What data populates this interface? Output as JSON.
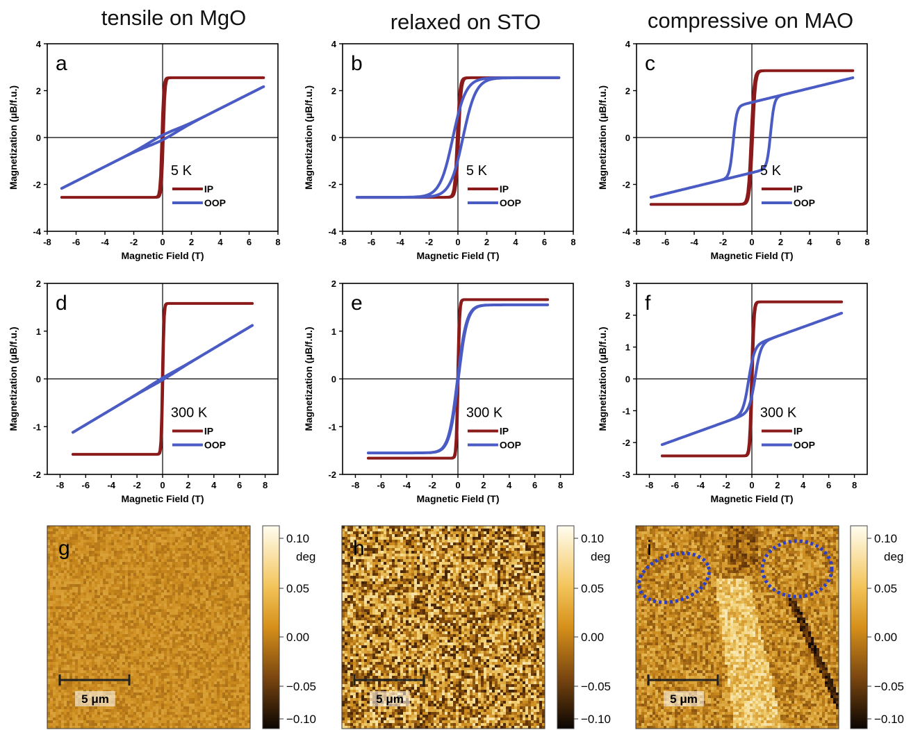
{
  "column_titles": [
    "tensile on MgO",
    "relaxed on STO",
    "compressive on MAO"
  ],
  "colors": {
    "ip": "#8b1a1a",
    "oop": "#4a5bc4",
    "ellipse": "#2f3fc4"
  },
  "chart_data": [
    {
      "id": "a",
      "type": "line",
      "panel_label": "a",
      "temperature": "5 K",
      "xlabel": "Magnetic Field (T)",
      "ylabel": "Magnetization (μB/f.u.)",
      "xlim": [
        -8,
        8
      ],
      "ylim": [
        -4,
        4
      ],
      "xticks": [
        -8,
        -6,
        -4,
        -2,
        0,
        2,
        4,
        6,
        8
      ],
      "yticks": [
        -4,
        -2,
        0,
        2,
        4
      ],
      "ms": 2.55,
      "mr": 2.3,
      "hc": 0.05,
      "w": 0.12,
      "oop": {
        "slope": 0.31,
        "offset": 0.1
      },
      "legend": [
        "IP",
        "OOP"
      ]
    },
    {
      "id": "b",
      "type": "line",
      "panel_label": "b",
      "temperature": "5 K",
      "xlabel": "Magnetic Field (T)",
      "ylabel": "Magnetization (μB/f.u.)",
      "xlim": [
        -8,
        8
      ],
      "ylim": [
        -4,
        4
      ],
      "xticks": [
        -8,
        -6,
        -4,
        -2,
        0,
        2,
        4,
        6,
        8
      ],
      "yticks": [
        -4,
        -2,
        0,
        2,
        4
      ],
      "ms": 2.55,
      "mr": 2.2,
      "hc": 0.05,
      "w": 0.18,
      "oop": {
        "ms": 2.55,
        "hc": 0.35,
        "w": 0.9
      },
      "legend": [
        "IP",
        "OOP"
      ]
    },
    {
      "id": "c",
      "type": "line",
      "panel_label": "c",
      "temperature": "5 K",
      "xlabel": "Magnetic Field (T)",
      "ylabel": "Magnetization (μB/f.u.)",
      "xlim": [
        -8,
        8
      ],
      "ylim": [
        -4,
        4
      ],
      "xticks": [
        -8,
        -6,
        -4,
        -2,
        0,
        2,
        4,
        6,
        8
      ],
      "yticks": [
        -4,
        -2,
        0,
        2,
        4
      ],
      "ms": 2.85,
      "mr": 2.6,
      "hc": 0.05,
      "w": 0.2,
      "oop": {
        "ms": 1.5,
        "hc": 1.3,
        "w": 0.25,
        "slope": 0.15
      },
      "legend": [
        "IP",
        "OOP"
      ]
    },
    {
      "id": "d",
      "type": "line",
      "panel_label": "d",
      "temperature": "300 K",
      "xlabel": "Magnetic Field (T)",
      "ylabel": "Magnetization (μB/f.u.)",
      "xlim": [
        -9,
        9
      ],
      "ylim": [
        -2,
        2
      ],
      "xticks": [
        -8,
        -6,
        -4,
        -2,
        0,
        2,
        4,
        6,
        8
      ],
      "yticks": [
        -2,
        -1,
        0,
        1,
        2
      ],
      "ms": 1.58,
      "mr": 1.2,
      "hc": 0.02,
      "w": 0.1,
      "oop": {
        "slope": 0.16,
        "offset": 0.02
      },
      "legend": [
        "IP",
        "OOP"
      ]
    },
    {
      "id": "e",
      "type": "line",
      "panel_label": "e",
      "temperature": "300 K",
      "xlabel": "Magnetic Field (T)",
      "ylabel": "Magnetization (μB/f.u.)",
      "xlim": [
        -9,
        9
      ],
      "ylim": [
        -2,
        2
      ],
      "xticks": [
        -8,
        -6,
        -4,
        -2,
        0,
        2,
        4,
        6,
        8
      ],
      "yticks": [
        -2,
        -1,
        0,
        1,
        2
      ],
      "ms": 1.66,
      "mr": 1.4,
      "hc": 0.02,
      "w": 0.12,
      "oop": {
        "ms": 1.55,
        "hc": 0.03,
        "w": 0.7
      },
      "legend": [
        "IP",
        "OOP"
      ]
    },
    {
      "id": "f",
      "type": "line",
      "panel_label": "f",
      "temperature": "300 K",
      "xlabel": "Magnetic Field (T)",
      "ylabel": "Magnetization (μB/f.u.)",
      "xlim": [
        -9,
        9
      ],
      "ylim": [
        -3,
        3
      ],
      "xticks": [
        -8,
        -6,
        -4,
        -2,
        0,
        2,
        4,
        6,
        8
      ],
      "yticks": [
        -3,
        -2,
        -1,
        0,
        1,
        2,
        3
      ],
      "ms": 2.42,
      "mr": 2.1,
      "hc": 0.03,
      "w": 0.15,
      "oop": {
        "ms": 1.05,
        "hc": 0.25,
        "w": 0.45,
        "slope": 0.145
      },
      "legend": [
        "IP",
        "OOP"
      ]
    }
  ],
  "images": [
    {
      "id": "g",
      "panel_label": "g",
      "scale_bar": "5 μm",
      "texture": "fine"
    },
    {
      "id": "h",
      "panel_label": "h",
      "scale_bar": "5 μm",
      "texture": "medium"
    },
    {
      "id": "i",
      "panel_label": "i",
      "scale_bar": "5 μm",
      "texture": "domains"
    }
  ],
  "colorbar": {
    "ticks": [
      "0.10",
      "0.05",
      "0.00",
      "−0.05",
      "−0.10"
    ],
    "unit": "deg"
  }
}
